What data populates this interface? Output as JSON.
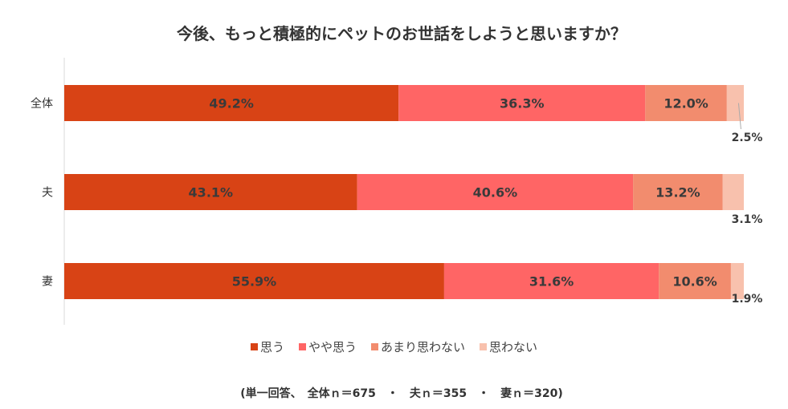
{
  "chart_data": {
    "type": "bar",
    "orientation": "horizontal-stacked-100",
    "title": "今後、もっと積極的にペットのお世話をしようと思いますか？",
    "categories": [
      "全体",
      "夫",
      "妻"
    ],
    "series": [
      {
        "name": "思う",
        "color": "#D84315",
        "values": [
          49.2,
          43.1,
          55.9
        ]
      },
      {
        "name": "やや思う",
        "color": "#FF6565",
        "values": [
          36.3,
          40.6,
          31.6
        ]
      },
      {
        "name": "あまり思わない",
        "color": "#F28C6E",
        "values": [
          12.0,
          13.2,
          10.6
        ]
      },
      {
        "name": "思わない",
        "color": "#F8C1AD",
        "values": [
          2.5,
          3.1,
          1.9
        ]
      }
    ],
    "labels": [
      [
        "49.2%",
        "36.3%",
        "12.0%",
        "2.5%"
      ],
      [
        "43.1%",
        "40.6%",
        "13.2%",
        "3.1%"
      ],
      [
        "55.9%",
        "31.6%",
        "10.6%",
        "1.9%"
      ]
    ],
    "xlim": [
      0,
      100
    ],
    "legend_position": "bottom",
    "note": "(単一回答、　全体ｎ＝675　・　夫ｎ＝355　・　妻ｎ＝320)"
  }
}
